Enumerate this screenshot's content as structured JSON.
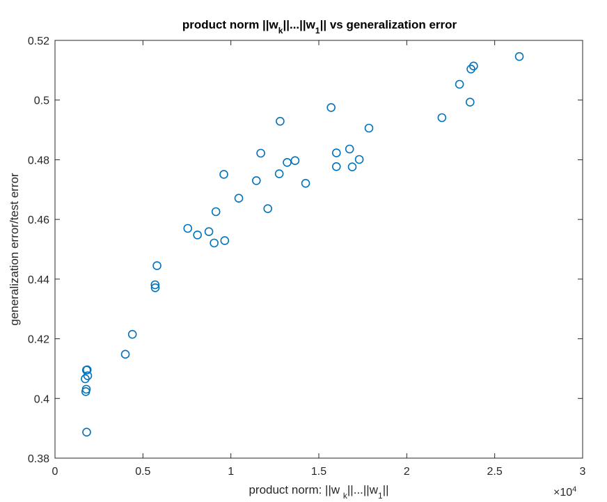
{
  "chart_data": {
    "type": "scatter",
    "title_parts": {
      "pre": "product norm ||w",
      "sub1": "k",
      "mid": "||...||w",
      "sub2": "1",
      "post": "|| vs generalization error"
    },
    "xlabel_parts": {
      "pre": "product norm: ||w ",
      "sub1": "k",
      "mid": "||...||w",
      "sub2": "1",
      "post": "||"
    },
    "ylabel": "generalization error/test error",
    "x_multiplier": {
      "base": "×10",
      "exponent": "4"
    },
    "xlim": [
      0,
      30000
    ],
    "ylim": [
      0.38,
      0.52
    ],
    "x_ticks": [
      0,
      5000,
      10000,
      15000,
      20000,
      25000,
      30000
    ],
    "x_tick_labels": [
      "0",
      "0.5",
      "1",
      "1.5",
      "2",
      "2.5",
      "3"
    ],
    "y_ticks": [
      0.38,
      0.4,
      0.42,
      0.44,
      0.46,
      0.48,
      0.5,
      0.52
    ],
    "y_tick_labels": [
      "0.38",
      "0.4",
      "0.42",
      "0.44",
      "0.46",
      "0.48",
      "0.5",
      "0.52"
    ],
    "grid": false,
    "marker_color": "#0072BD",
    "series": [
      {
        "points": [
          [
            1800,
            0.3887
          ],
          [
            1750,
            0.4023
          ],
          [
            1780,
            0.4031
          ],
          [
            1720,
            0.4066
          ],
          [
            1860,
            0.4076
          ],
          [
            1790,
            0.4095
          ],
          [
            1830,
            0.4096
          ],
          [
            4000,
            0.4148
          ],
          [
            4400,
            0.4215
          ],
          [
            5700,
            0.4371
          ],
          [
            5690,
            0.4381
          ],
          [
            5800,
            0.4445
          ],
          [
            7550,
            0.457
          ],
          [
            8100,
            0.4548
          ],
          [
            8750,
            0.4559
          ],
          [
            9050,
            0.4521
          ],
          [
            9150,
            0.4626
          ],
          [
            9650,
            0.4529
          ],
          [
            9600,
            0.4751
          ],
          [
            10450,
            0.4671
          ],
          [
            11450,
            0.473
          ],
          [
            11700,
            0.4822
          ],
          [
            12100,
            0.4636
          ],
          [
            12750,
            0.4753
          ],
          [
            12800,
            0.4929
          ],
          [
            13200,
            0.4791
          ],
          [
            13650,
            0.4797
          ],
          [
            14250,
            0.4721
          ],
          [
            15700,
            0.4975
          ],
          [
            16000,
            0.4777
          ],
          [
            16000,
            0.4823
          ],
          [
            16750,
            0.4836
          ],
          [
            16900,
            0.4776
          ],
          [
            17300,
            0.4801
          ],
          [
            17850,
            0.4906
          ],
          [
            22000,
            0.4941
          ],
          [
            23000,
            0.5053
          ],
          [
            23600,
            0.4993
          ],
          [
            23650,
            0.5104
          ],
          [
            23800,
            0.5114
          ],
          [
            26400,
            0.5146
          ]
        ]
      }
    ]
  }
}
